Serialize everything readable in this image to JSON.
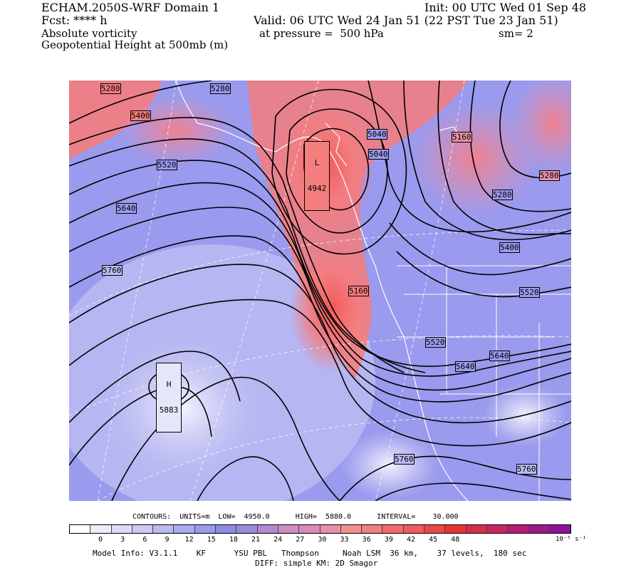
{
  "header": {
    "model_domain": "ECHAM.2050S-WRF Domain 1",
    "forecast": "Fcst: **** h",
    "field1": "Absolute vorticity",
    "field2": "Geopotential Height at 500mb (m)",
    "init": "Init: 00 UTC Wed 01 Sep 48",
    "valid": "Valid: 06 UTC Wed 24 Jan 51 (22 PST Tue 23 Jan 51)",
    "pressure": "at pressure =  500 hPa",
    "smoothing": "sm= 2"
  },
  "map": {
    "low_center": {
      "marker": "L",
      "value": "4942"
    },
    "high_center": {
      "marker": "H",
      "value": "5883"
    },
    "contour_labels": [
      "5280",
      "5280",
      "5400",
      "5520",
      "5640",
      "5760",
      "5040",
      "5040",
      "5160",
      "5280",
      "5280",
      "5400",
      "5520",
      "5160",
      "5520",
      "5640",
      "5640",
      "5760",
      "5760"
    ]
  },
  "contours_info": {
    "label": "CONTOURS:  UNITS=m  LOW=  4950.0      HIGH=  5880.0      INTERVAL=    30.000"
  },
  "colorbar": {
    "ticks": [
      "0",
      "3",
      "6",
      "9",
      "12",
      "15",
      "18",
      "21",
      "24",
      "27",
      "30",
      "33",
      "36",
      "39",
      "42",
      "45",
      "48"
    ],
    "unit": "10⁻⁵ s⁻¹",
    "colors": [
      "#ffffff",
      "#ececfb",
      "#dcdcf8",
      "#cbcbf5",
      "#bbbbf2",
      "#aaaaf0",
      "#9a9aee",
      "#8c8ce8",
      "#9a8adc",
      "#b38ad0",
      "#cc8fc4",
      "#dc8ab8",
      "#e890a8",
      "#f29090",
      "#f47d7d",
      "#f46a6a",
      "#f25a5a",
      "#ef4545",
      "#e83434",
      "#d92b4a",
      "#c92660",
      "#b51e74",
      "#a0188a",
      "#8c1398"
    ]
  },
  "model_info": {
    "line1": "Model Info: V3.1.1    KF      YSU PBL   Thompson     Noah LSM  36 km,    37 levels,  180 sec",
    "line2": "DIFF: simple KM: 2D Smagor"
  }
}
